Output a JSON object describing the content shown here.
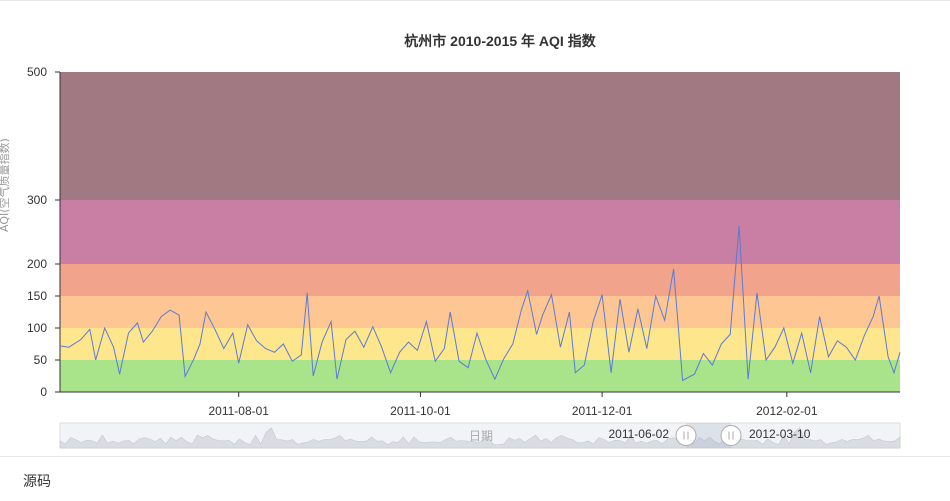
{
  "chart_data": {
    "type": "line",
    "title": "杭州市 2010-2015 年 AQI 指数",
    "xlabel": "",
    "ylabel": "AQI(空气质量指数)",
    "x_range": [
      "2011-06-02",
      "2012-03-10"
    ],
    "x_ticks": [
      "2011-08-01",
      "2011-10-01",
      "2011-12-01",
      "2012-02-01"
    ],
    "y_ticks": [
      0,
      50,
      100,
      150,
      200,
      300,
      500
    ],
    "bands": [
      {
        "from": 0,
        "to": 50,
        "color": "#a9e48a"
      },
      {
        "from": 50,
        "to": 100,
        "color": "#fde68c"
      },
      {
        "from": 100,
        "to": 150,
        "color": "#fdc692"
      },
      {
        "from": 150,
        "to": 200,
        "color": "#f2a38b"
      },
      {
        "from": 200,
        "to": 300,
        "color": "#c97ea4"
      },
      {
        "from": 300,
        "to": 500,
        "color": "#a07983"
      }
    ],
    "series": [
      {
        "color": "#5b7bd5",
        "points": [
          [
            "2011-06-02",
            72
          ],
          [
            "2011-06-05",
            70
          ],
          [
            "2011-06-09",
            82
          ],
          [
            "2011-06-12",
            98
          ],
          [
            "2011-06-14",
            50
          ],
          [
            "2011-06-17",
            100
          ],
          [
            "2011-06-20",
            70
          ],
          [
            "2011-06-22",
            28
          ],
          [
            "2011-06-25",
            92
          ],
          [
            "2011-06-28",
            108
          ],
          [
            "2011-06-30",
            78
          ],
          [
            "2011-07-03",
            95
          ],
          [
            "2011-07-06",
            118
          ],
          [
            "2011-07-09",
            128
          ],
          [
            "2011-07-12",
            120
          ],
          [
            "2011-07-14",
            24
          ],
          [
            "2011-07-17",
            52
          ],
          [
            "2011-07-19",
            75
          ],
          [
            "2011-07-21",
            125
          ],
          [
            "2011-07-24",
            98
          ],
          [
            "2011-07-27",
            68
          ],
          [
            "2011-07-30",
            92
          ],
          [
            "2011-08-01",
            45
          ],
          [
            "2011-08-04",
            105
          ],
          [
            "2011-08-07",
            80
          ],
          [
            "2011-08-10",
            68
          ],
          [
            "2011-08-13",
            62
          ],
          [
            "2011-08-16",
            75
          ],
          [
            "2011-08-19",
            48
          ],
          [
            "2011-08-22",
            58
          ],
          [
            "2011-08-24",
            155
          ],
          [
            "2011-08-26",
            25
          ],
          [
            "2011-08-29",
            78
          ],
          [
            "2011-09-01",
            110
          ],
          [
            "2011-09-03",
            20
          ],
          [
            "2011-09-06",
            82
          ],
          [
            "2011-09-09",
            95
          ],
          [
            "2011-09-12",
            70
          ],
          [
            "2011-09-15",
            102
          ],
          [
            "2011-09-18",
            70
          ],
          [
            "2011-09-21",
            30
          ],
          [
            "2011-09-24",
            62
          ],
          [
            "2011-09-27",
            78
          ],
          [
            "2011-09-30",
            65
          ],
          [
            "2011-10-03",
            110
          ],
          [
            "2011-10-06",
            48
          ],
          [
            "2011-10-09",
            68
          ],
          [
            "2011-10-11",
            125
          ],
          [
            "2011-10-14",
            48
          ],
          [
            "2011-10-17",
            38
          ],
          [
            "2011-10-20",
            92
          ],
          [
            "2011-10-23",
            50
          ],
          [
            "2011-10-26",
            20
          ],
          [
            "2011-10-29",
            52
          ],
          [
            "2011-11-01",
            75
          ],
          [
            "2011-11-04",
            130
          ],
          [
            "2011-11-06",
            158
          ],
          [
            "2011-11-09",
            90
          ],
          [
            "2011-11-11",
            120
          ],
          [
            "2011-11-14",
            152
          ],
          [
            "2011-11-17",
            70
          ],
          [
            "2011-11-20",
            125
          ],
          [
            "2011-11-22",
            30
          ],
          [
            "2011-11-25",
            42
          ],
          [
            "2011-11-28",
            110
          ],
          [
            "2011-12-01",
            152
          ],
          [
            "2011-12-04",
            30
          ],
          [
            "2011-12-07",
            145
          ],
          [
            "2011-12-10",
            62
          ],
          [
            "2011-12-13",
            130
          ],
          [
            "2011-12-16",
            68
          ],
          [
            "2011-12-19",
            150
          ],
          [
            "2011-12-22",
            112
          ],
          [
            "2011-12-25",
            192
          ],
          [
            "2011-12-28",
            18
          ],
          [
            "2012-01-01",
            28
          ],
          [
            "2012-01-04",
            60
          ],
          [
            "2012-01-07",
            42
          ],
          [
            "2012-01-10",
            75
          ],
          [
            "2012-01-13",
            90
          ],
          [
            "2012-01-16",
            260
          ],
          [
            "2012-01-19",
            20
          ],
          [
            "2012-01-22",
            155
          ],
          [
            "2012-01-25",
            50
          ],
          [
            "2012-01-28",
            70
          ],
          [
            "2012-01-31",
            100
          ],
          [
            "2012-02-03",
            45
          ],
          [
            "2012-02-06",
            92
          ],
          [
            "2012-02-09",
            30
          ],
          [
            "2012-02-12",
            118
          ],
          [
            "2012-02-15",
            55
          ],
          [
            "2012-02-18",
            80
          ],
          [
            "2012-02-21",
            70
          ],
          [
            "2012-02-24",
            50
          ],
          [
            "2012-02-27",
            88
          ],
          [
            "2012-03-01",
            118
          ],
          [
            "2012-03-03",
            150
          ],
          [
            "2012-03-06",
            55
          ],
          [
            "2012-03-08",
            30
          ],
          [
            "2012-03-10",
            62
          ]
        ]
      }
    ],
    "data_zoom": {
      "start": "2011-06-02",
      "end": "2012-03-10",
      "label": "日期"
    }
  },
  "footer": {
    "source_label": "源码"
  }
}
